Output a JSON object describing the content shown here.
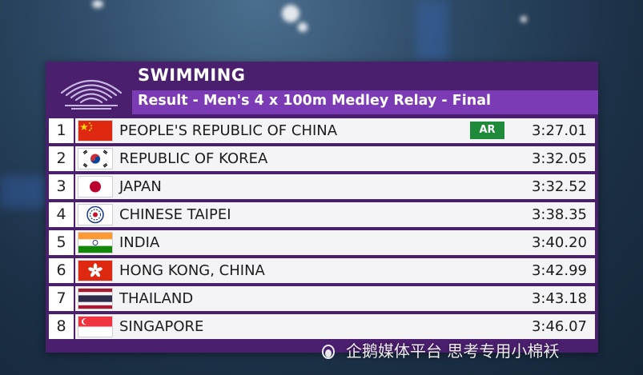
{
  "broadcast": {
    "sport": "SWIMMING",
    "event": "Result - Men's 4 x 100m Medley Relay - Final"
  },
  "results": [
    {
      "rank": "1",
      "flag": "china-flag",
      "country": "PEOPLE'S REPUBLIC OF CHINA",
      "record": "AR",
      "time": "3:27.01"
    },
    {
      "rank": "2",
      "flag": "korea-flag",
      "country": "REPUBLIC OF KOREA",
      "record": "",
      "time": "3:32.05"
    },
    {
      "rank": "3",
      "flag": "japan-flag",
      "country": "JAPAN",
      "record": "",
      "time": "3:32.52"
    },
    {
      "rank": "4",
      "flag": "chinese-taipei-flag",
      "country": "CHINESE TAIPEI",
      "record": "",
      "time": "3:38.35"
    },
    {
      "rank": "5",
      "flag": "india-flag",
      "country": "INDIA",
      "record": "",
      "time": "3:40.20"
    },
    {
      "rank": "6",
      "flag": "hong-kong-flag",
      "country": "HONG KONG, CHINA",
      "record": "",
      "time": "3:42.99"
    },
    {
      "rank": "7",
      "flag": "thailand-flag",
      "country": "THAILAND",
      "record": "",
      "time": "3:43.18"
    },
    {
      "rank": "8",
      "flag": "singapore-flag",
      "country": "SINGAPORE",
      "record": "",
      "time": "3:46.07"
    }
  ],
  "watermark": {
    "text": "企鹅媒体平台 思考专用小棉袄"
  },
  "colors": {
    "panel": "#4a1f6e",
    "subtitle_bar": "#7b3bb4",
    "record_badge": "#1e8a3a"
  }
}
